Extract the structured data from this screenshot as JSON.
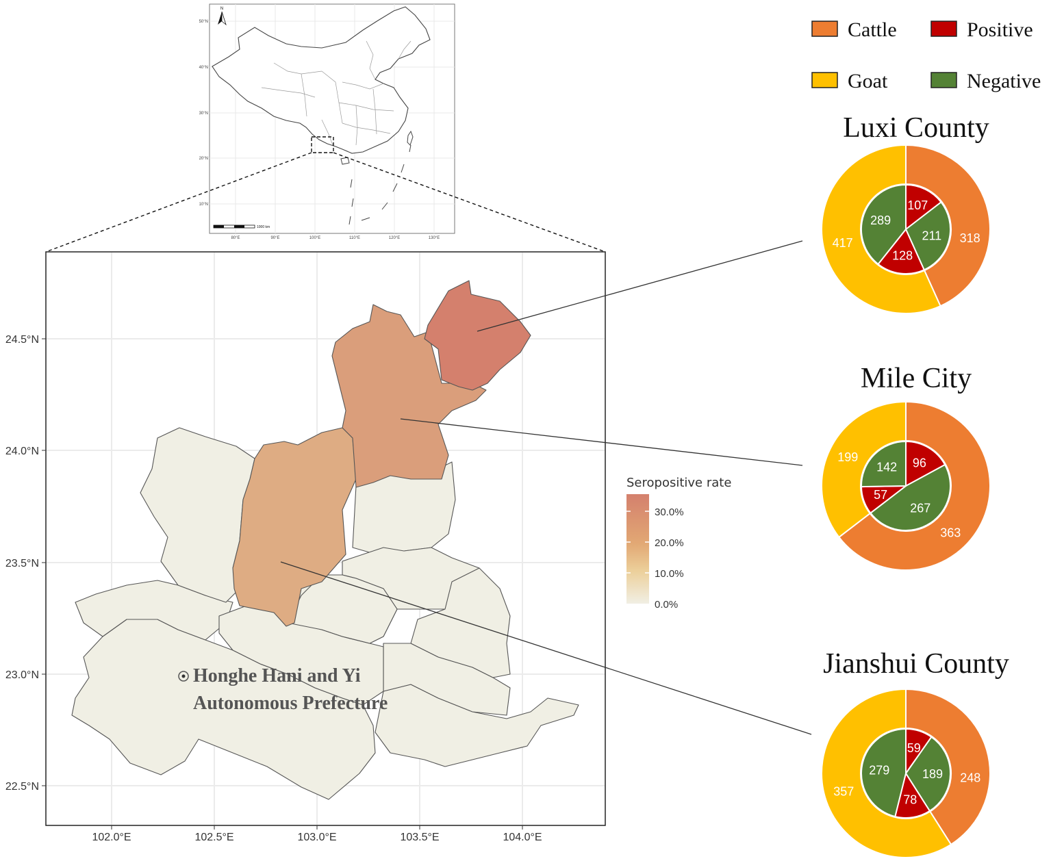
{
  "inset": {
    "lat_ticks": [
      "50°N",
      "40°N",
      "30°N",
      "20°N",
      "10°N"
    ],
    "lon_ticks": [
      "80°E",
      "90°E",
      "100°E",
      "110°E",
      "120°E",
      "130°E"
    ],
    "scale_label": "1000 km",
    "north_label": "N"
  },
  "main_map": {
    "lat_ticks": [
      "24.5°N",
      "24.0°N",
      "23.5°N",
      "23.0°N",
      "22.5°N"
    ],
    "lon_ticks": [
      "102.0°E",
      "102.5°E",
      "103.0°E",
      "103.5°E",
      "104.0°E"
    ],
    "place_label_line1": "Honghe Hani and Yi",
    "place_label_line2": "Autonomous Prefecture"
  },
  "colorbar": {
    "title": "Seropositive  rate",
    "ticks": [
      "30.0%",
      "20.0%",
      "10.0%",
      "0.0%"
    ],
    "color_high": "#d4806d",
    "color_low": "#f1efe4"
  },
  "legend": {
    "cattle": "Cattle",
    "goat": "Goat",
    "positive": "Positive",
    "negative": "Negative",
    "colors": {
      "cattle": "#ed7d31",
      "goat": "#ffc000",
      "positive": "#c00000",
      "negative": "#548235"
    }
  },
  "counties": [
    {
      "name": "Luxi County",
      "goat": 417,
      "cattle": 318,
      "positive_a": 107,
      "negative_a": 211,
      "positive_b": 128,
      "negative_b": 289
    },
    {
      "name": "Mile City",
      "goat": 199,
      "cattle": 363,
      "positive_a": 96,
      "negative_a": 267,
      "positive_b": 57,
      "negative_b": 142
    },
    {
      "name": "Jianshui County",
      "goat": 357,
      "cattle": 248,
      "positive_a": 59,
      "negative_a": 189,
      "positive_b": 78,
      "negative_b": 279
    }
  ]
}
